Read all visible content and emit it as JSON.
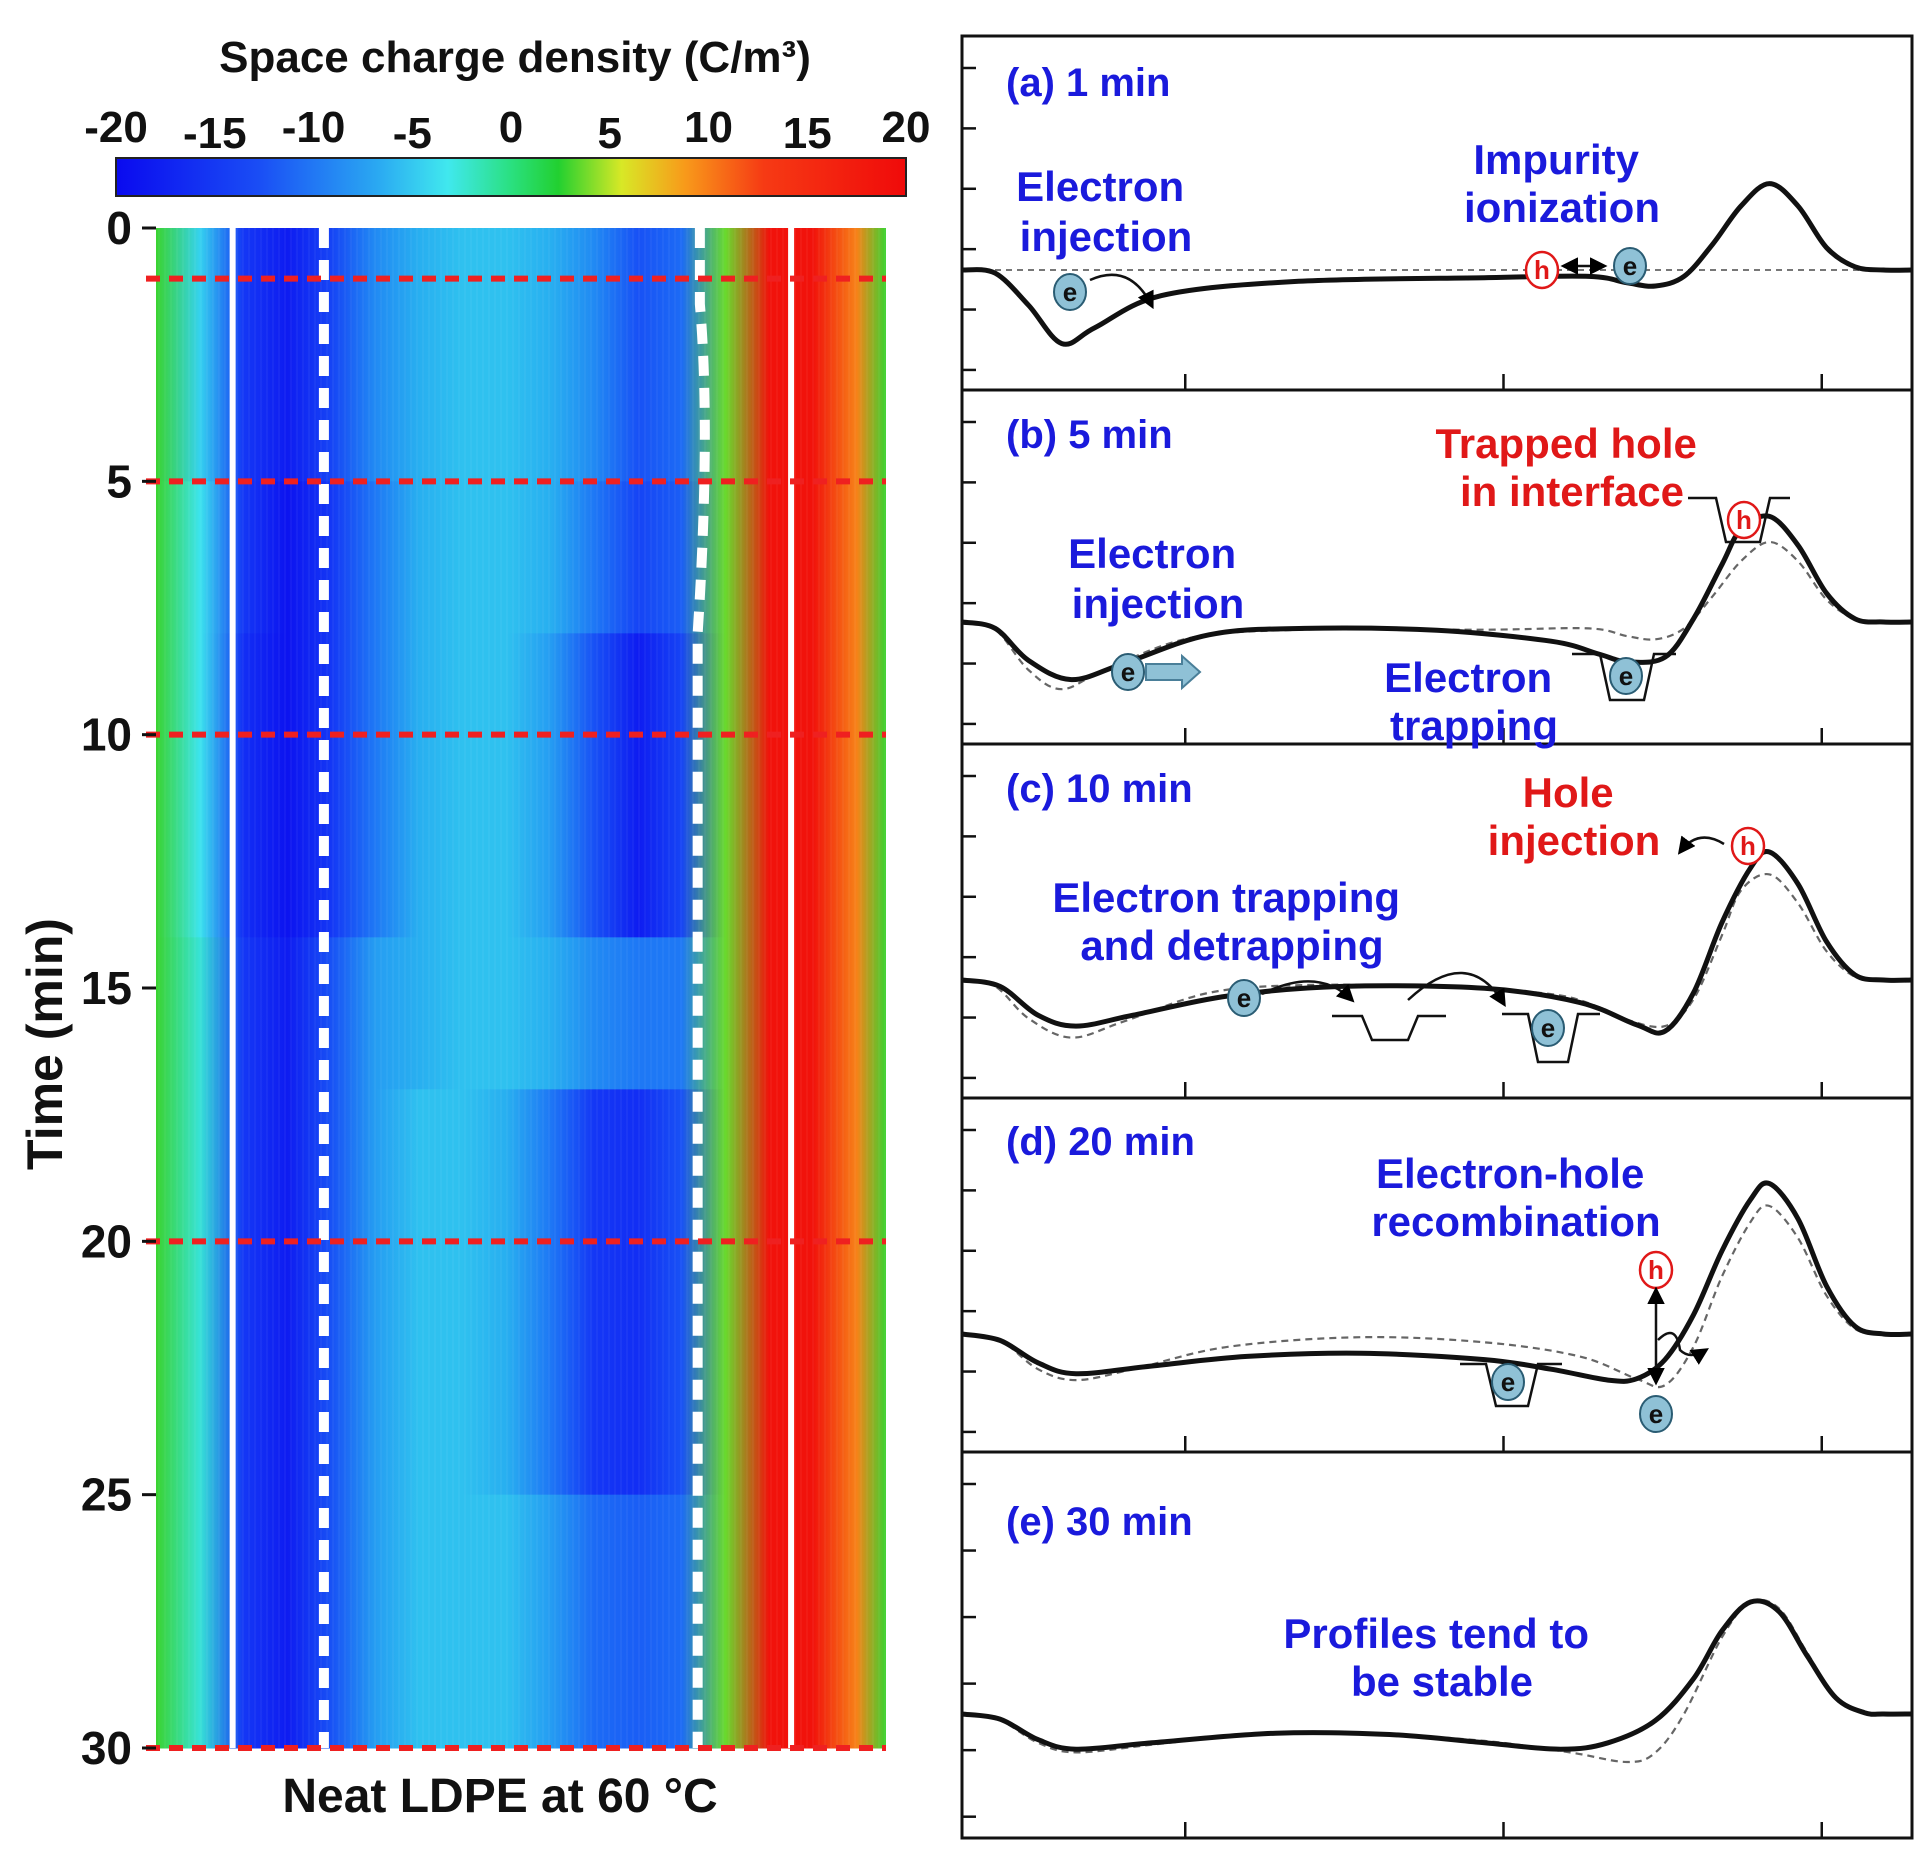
{
  "chart_data": [
    {
      "type": "heatmap",
      "title": "Space charge density (C/m³)",
      "colorbar": {
        "ticks": [
          -20,
          -15,
          -10,
          -5,
          0,
          5,
          10,
          15,
          20
        ],
        "range": [
          -20,
          20
        ]
      },
      "xlabel": "Neat LDPE at 60 °C",
      "ylabel": "Time (min)",
      "y_ticks": [
        0,
        5,
        10,
        15,
        20,
        25,
        30
      ],
      "ylim": [
        0,
        30
      ],
      "highlighted_times": [
        1,
        5,
        10,
        20,
        30
      ],
      "x_stations": [
        0,
        0.06,
        0.12,
        0.18,
        0.24,
        0.3,
        0.36,
        0.42,
        0.48,
        0.54,
        0.6,
        0.66,
        0.72,
        0.78,
        0.84,
        0.9,
        0.96,
        1.0
      ],
      "time_bands": [
        {
          "t": [
            0,
            5
          ],
          "values": [
            3,
            -5,
            -15,
            -18,
            -14,
            -9,
            -7,
            -6,
            -6,
            -7,
            -9,
            -13,
            -11,
            4,
            19,
            19,
            10,
            3
          ]
        },
        {
          "t": [
            5,
            8
          ],
          "values": [
            3,
            -4,
            -15,
            -19,
            -15,
            -10,
            -7,
            -6,
            -6,
            -7,
            -10,
            -14,
            -12,
            4,
            19,
            19,
            10,
            3
          ]
        },
        {
          "t": [
            8,
            14
          ],
          "values": [
            3,
            -4,
            -16,
            -19,
            -15,
            -10,
            -7,
            -6,
            -6,
            -8,
            -13,
            -18,
            -14,
            4,
            19,
            19,
            10,
            3
          ]
        },
        {
          "t": [
            14,
            17
          ],
          "values": [
            3,
            -3,
            -15,
            -18,
            -13,
            -8,
            -7,
            -6,
            -6,
            -7,
            -9,
            -10,
            -10,
            4,
            19,
            19,
            10,
            3
          ]
        },
        {
          "t": [
            17,
            25
          ],
          "values": [
            3,
            -3,
            -15,
            -18,
            -13,
            -8,
            -6,
            -6,
            -7,
            -10,
            -15,
            -16,
            -13,
            4,
            19,
            19,
            10,
            3
          ]
        },
        {
          "t": [
            25,
            30
          ],
          "values": [
            3,
            -3,
            -15,
            -18,
            -13,
            -8,
            -6,
            -6,
            -6,
            -8,
            -11,
            -12,
            -11,
            4,
            19,
            19,
            10,
            3
          ]
        }
      ],
      "colors": {
        "accent_dashed": "#ef2020"
      }
    },
    {
      "type": "line",
      "panels": [
        {
          "label": "(a) 1 min",
          "annotations": [
            {
              "text": [
                "Electron",
                "injection"
              ],
              "color": "#1a1adc"
            },
            {
              "text": [
                "Impurity",
                "ionization"
              ],
              "color": "#1a1adc"
            }
          ],
          "current": [
            [
              0,
              0
            ],
            [
              0.035,
              -0.05
            ],
            [
              0.07,
              -0.55
            ],
            [
              0.105,
              -1.15
            ],
            [
              0.14,
              -0.9
            ],
            [
              0.21,
              -0.4
            ],
            [
              0.35,
              -0.18
            ],
            [
              0.55,
              -0.12
            ],
            [
              0.66,
              -0.1
            ],
            [
              0.7,
              -0.2
            ],
            [
              0.73,
              -0.25
            ],
            [
              0.76,
              -0.1
            ],
            [
              0.79,
              0.4
            ],
            [
              0.82,
              1.0
            ],
            [
              0.85,
              1.35
            ],
            [
              0.88,
              1.0
            ],
            [
              0.91,
              0.35
            ],
            [
              0.94,
              0.05
            ],
            [
              0.97,
              0
            ],
            [
              1,
              0
            ]
          ]
        },
        {
          "label": "(b) 5 min",
          "annotations": [
            {
              "text": [
                "Electron",
                "injection"
              ],
              "color": "#1a1adc"
            },
            {
              "text": [
                "Trapped hole",
                "in interface"
              ],
              "color": "#e01818"
            },
            {
              "text": [
                "Electron",
                "trapping"
              ],
              "color": "#1a1adc"
            }
          ],
          "current": [
            [
              0,
              0
            ],
            [
              0.035,
              -0.1
            ],
            [
              0.07,
              -0.6
            ],
            [
              0.115,
              -0.9
            ],
            [
              0.17,
              -0.65
            ],
            [
              0.26,
              -0.2
            ],
            [
              0.36,
              -0.1
            ],
            [
              0.5,
              -0.13
            ],
            [
              0.62,
              -0.3
            ],
            [
              0.67,
              -0.5
            ],
            [
              0.7,
              -0.62
            ],
            [
              0.74,
              -0.55
            ],
            [
              0.77,
              0.05
            ],
            [
              0.8,
              0.9
            ],
            [
              0.82,
              1.45
            ],
            [
              0.85,
              1.65
            ],
            [
              0.88,
              1.2
            ],
            [
              0.91,
              0.45
            ],
            [
              0.94,
              0.05
            ],
            [
              0.97,
              0
            ],
            [
              1,
              0
            ]
          ],
          "reference": [
            [
              0,
              0
            ],
            [
              0.035,
              -0.12
            ],
            [
              0.07,
              -0.75
            ],
            [
              0.105,
              -1.05
            ],
            [
              0.15,
              -0.75
            ],
            [
              0.24,
              -0.25
            ],
            [
              0.36,
              -0.12
            ],
            [
              0.55,
              -0.12
            ],
            [
              0.66,
              -0.1
            ],
            [
              0.7,
              -0.22
            ],
            [
              0.73,
              -0.27
            ],
            [
              0.76,
              -0.1
            ],
            [
              0.79,
              0.4
            ],
            [
              0.82,
              0.95
            ],
            [
              0.85,
              1.25
            ],
            [
              0.88,
              0.95
            ],
            [
              0.91,
              0.35
            ],
            [
              0.94,
              0.05
            ],
            [
              0.97,
              0
            ],
            [
              1,
              0
            ]
          ]
        },
        {
          "label": "(c) 10 min",
          "annotations": [
            {
              "text": [
                "Hole",
                "injection"
              ],
              "color": "#e01818"
            },
            {
              "text": [
                "Electron trapping",
                "and detrapping"
              ],
              "color": "#1a1adc"
            }
          ],
          "current": [
            [
              0,
              0
            ],
            [
              0.04,
              -0.1
            ],
            [
              0.08,
              -0.55
            ],
            [
              0.12,
              -0.72
            ],
            [
              0.18,
              -0.55
            ],
            [
              0.28,
              -0.25
            ],
            [
              0.4,
              -0.1
            ],
            [
              0.55,
              -0.13
            ],
            [
              0.65,
              -0.35
            ],
            [
              0.71,
              -0.7
            ],
            [
              0.74,
              -0.8
            ],
            [
              0.77,
              -0.2
            ],
            [
              0.8,
              0.9
            ],
            [
              0.83,
              1.75
            ],
            [
              0.85,
              2.0
            ],
            [
              0.88,
              1.5
            ],
            [
              0.91,
              0.6
            ],
            [
              0.94,
              0.08
            ],
            [
              0.97,
              0
            ],
            [
              1,
              0
            ]
          ],
          "reference": [
            [
              0,
              0
            ],
            [
              0.035,
              -0.1
            ],
            [
              0.07,
              -0.6
            ],
            [
              0.115,
              -0.9
            ],
            [
              0.17,
              -0.65
            ],
            [
              0.26,
              -0.2
            ],
            [
              0.36,
              -0.08
            ],
            [
              0.5,
              -0.1
            ],
            [
              0.62,
              -0.22
            ],
            [
              0.67,
              -0.42
            ],
            [
              0.7,
              -0.62
            ],
            [
              0.74,
              -0.72
            ],
            [
              0.77,
              -0.3
            ],
            [
              0.8,
              0.7
            ],
            [
              0.82,
              1.4
            ],
            [
              0.85,
              1.65
            ],
            [
              0.88,
              1.2
            ],
            [
              0.91,
              0.45
            ],
            [
              0.94,
              0.05
            ],
            [
              0.97,
              0
            ],
            [
              1,
              0
            ]
          ]
        },
        {
          "label": "(d) 20 min",
          "annotations": [
            {
              "text": [
                "Electron-hole",
                "recombination"
              ],
              "color": "#1a1adc"
            }
          ],
          "current": [
            [
              0,
              0
            ],
            [
              0.04,
              -0.1
            ],
            [
              0.08,
              -0.45
            ],
            [
              0.12,
              -0.62
            ],
            [
              0.2,
              -0.5
            ],
            [
              0.3,
              -0.35
            ],
            [
              0.42,
              -0.3
            ],
            [
              0.55,
              -0.4
            ],
            [
              0.62,
              -0.55
            ],
            [
              0.68,
              -0.72
            ],
            [
              0.71,
              -0.7
            ],
            [
              0.74,
              -0.4
            ],
            [
              0.77,
              0.3
            ],
            [
              0.8,
              1.3
            ],
            [
              0.83,
              2.1
            ],
            [
              0.85,
              2.35
            ],
            [
              0.88,
              1.8
            ],
            [
              0.91,
              0.75
            ],
            [
              0.94,
              0.12
            ],
            [
              0.97,
              0
            ],
            [
              1,
              0
            ]
          ],
          "reference": [
            [
              0,
              0
            ],
            [
              0.04,
              -0.1
            ],
            [
              0.08,
              -0.55
            ],
            [
              0.12,
              -0.72
            ],
            [
              0.18,
              -0.55
            ],
            [
              0.28,
              -0.2
            ],
            [
              0.42,
              -0.05
            ],
            [
              0.55,
              -0.13
            ],
            [
              0.65,
              -0.35
            ],
            [
              0.71,
              -0.7
            ],
            [
              0.74,
              -0.8
            ],
            [
              0.77,
              -0.2
            ],
            [
              0.8,
              0.9
            ],
            [
              0.83,
              1.75
            ],
            [
              0.85,
              2.0
            ],
            [
              0.88,
              1.5
            ],
            [
              0.91,
              0.6
            ],
            [
              0.94,
              0.08
            ],
            [
              0.97,
              0
            ],
            [
              1,
              0
            ]
          ]
        },
        {
          "label": "(e) 30 min",
          "annotations": [
            {
              "text": [
                "Profiles tend to",
                "be stable"
              ],
              "color": "#1a1adc"
            }
          ],
          "current": [
            [
              0,
              0
            ],
            [
              0.04,
              -0.08
            ],
            [
              0.08,
              -0.4
            ],
            [
              0.12,
              -0.55
            ],
            [
              0.2,
              -0.45
            ],
            [
              0.33,
              -0.3
            ],
            [
              0.45,
              -0.32
            ],
            [
              0.55,
              -0.45
            ],
            [
              0.63,
              -0.55
            ],
            [
              0.68,
              -0.45
            ],
            [
              0.73,
              -0.1
            ],
            [
              0.77,
              0.55
            ],
            [
              0.8,
              1.3
            ],
            [
              0.83,
              1.75
            ],
            [
              0.86,
              1.6
            ],
            [
              0.89,
              0.9
            ],
            [
              0.92,
              0.25
            ],
            [
              0.95,
              0.02
            ],
            [
              0.97,
              0
            ],
            [
              1,
              0
            ]
          ],
          "reference": [
            [
              0,
              0
            ],
            [
              0.04,
              -0.1
            ],
            [
              0.08,
              -0.45
            ],
            [
              0.12,
              -0.6
            ],
            [
              0.2,
              -0.48
            ],
            [
              0.3,
              -0.33
            ],
            [
              0.42,
              -0.3
            ],
            [
              0.55,
              -0.42
            ],
            [
              0.64,
              -0.6
            ],
            [
              0.7,
              -0.75
            ],
            [
              0.73,
              -0.6
            ],
            [
              0.76,
              0.0
            ],
            [
              0.8,
              1.2
            ],
            [
              0.83,
              1.75
            ],
            [
              0.86,
              1.65
            ],
            [
              0.89,
              0.95
            ],
            [
              0.92,
              0.25
            ],
            [
              0.95,
              0.02
            ],
            [
              0.97,
              0
            ],
            [
              1,
              0
            ]
          ]
        }
      ],
      "symbols": {
        "electron": "e",
        "hole": "h"
      },
      "colors": {
        "electron_fill": "#8fc1d6",
        "hole_stroke": "#e01818"
      }
    }
  ]
}
